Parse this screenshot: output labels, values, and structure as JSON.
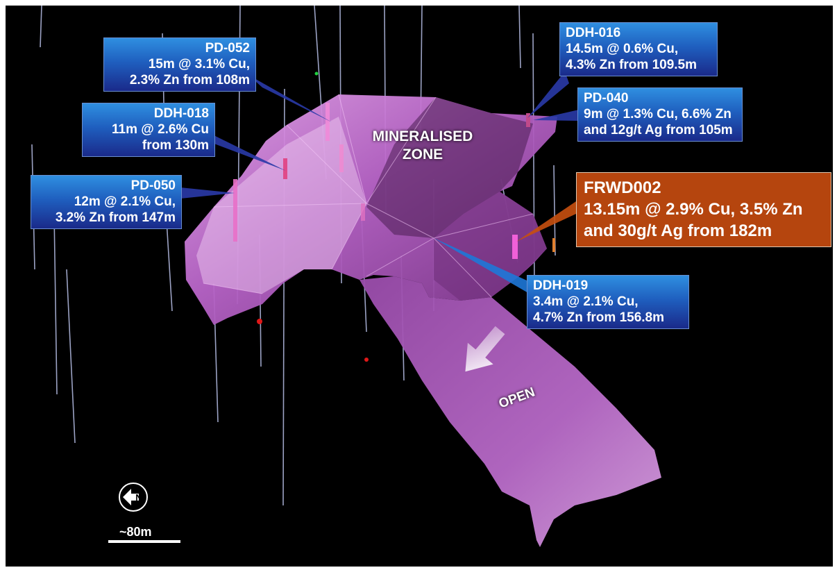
{
  "scene": {
    "zone_label_line1": "MINERALISED",
    "zone_label_line2": "ZONE",
    "open_label": "OPEN",
    "scale_label": "~80m",
    "compass_letter": "N",
    "colors": {
      "background": "#000000",
      "body_light": "#d68fe0",
      "body_mid": "#b05cc0",
      "body_dark": "#5e2a66",
      "drillhole": "#b8c0e8",
      "callout_blue": "#1f5fbf",
      "callout_orange": "#b5450e"
    }
  },
  "callouts": [
    {
      "id": "pd052",
      "hole": "PD-052",
      "lines": [
        "15m @ 3.1% Cu,",
        "2.3% Zn from 108m"
      ]
    },
    {
      "id": "ddh018",
      "hole": "DDH-018",
      "lines": [
        "11m @ 2.6% Cu",
        "from 130m"
      ]
    },
    {
      "id": "pd050",
      "hole": "PD-050",
      "lines": [
        "12m @ 2.1% Cu,",
        "3.2% Zn from 147m"
      ]
    },
    {
      "id": "ddh016",
      "hole": "DDH-016",
      "lines": [
        "14.5m @ 0.6% Cu,",
        "4.3% Zn from 109.5m"
      ]
    },
    {
      "id": "pd040",
      "hole": "PD-040",
      "lines": [
        "9m @ 1.3% Cu, 6.6% Zn",
        "and 12g/t Ag from 105m"
      ]
    },
    {
      "id": "frwd002",
      "hole": "FRWD002",
      "lines": [
        "13.15m @ 2.9% Cu, 3.5% Zn",
        "and 30g/t Ag from 182m"
      ]
    },
    {
      "id": "ddh019",
      "hole": "DDH-019",
      "lines": [
        "3.4m @ 2.1% Cu,",
        "4.7% Zn from 156.8m"
      ]
    }
  ]
}
